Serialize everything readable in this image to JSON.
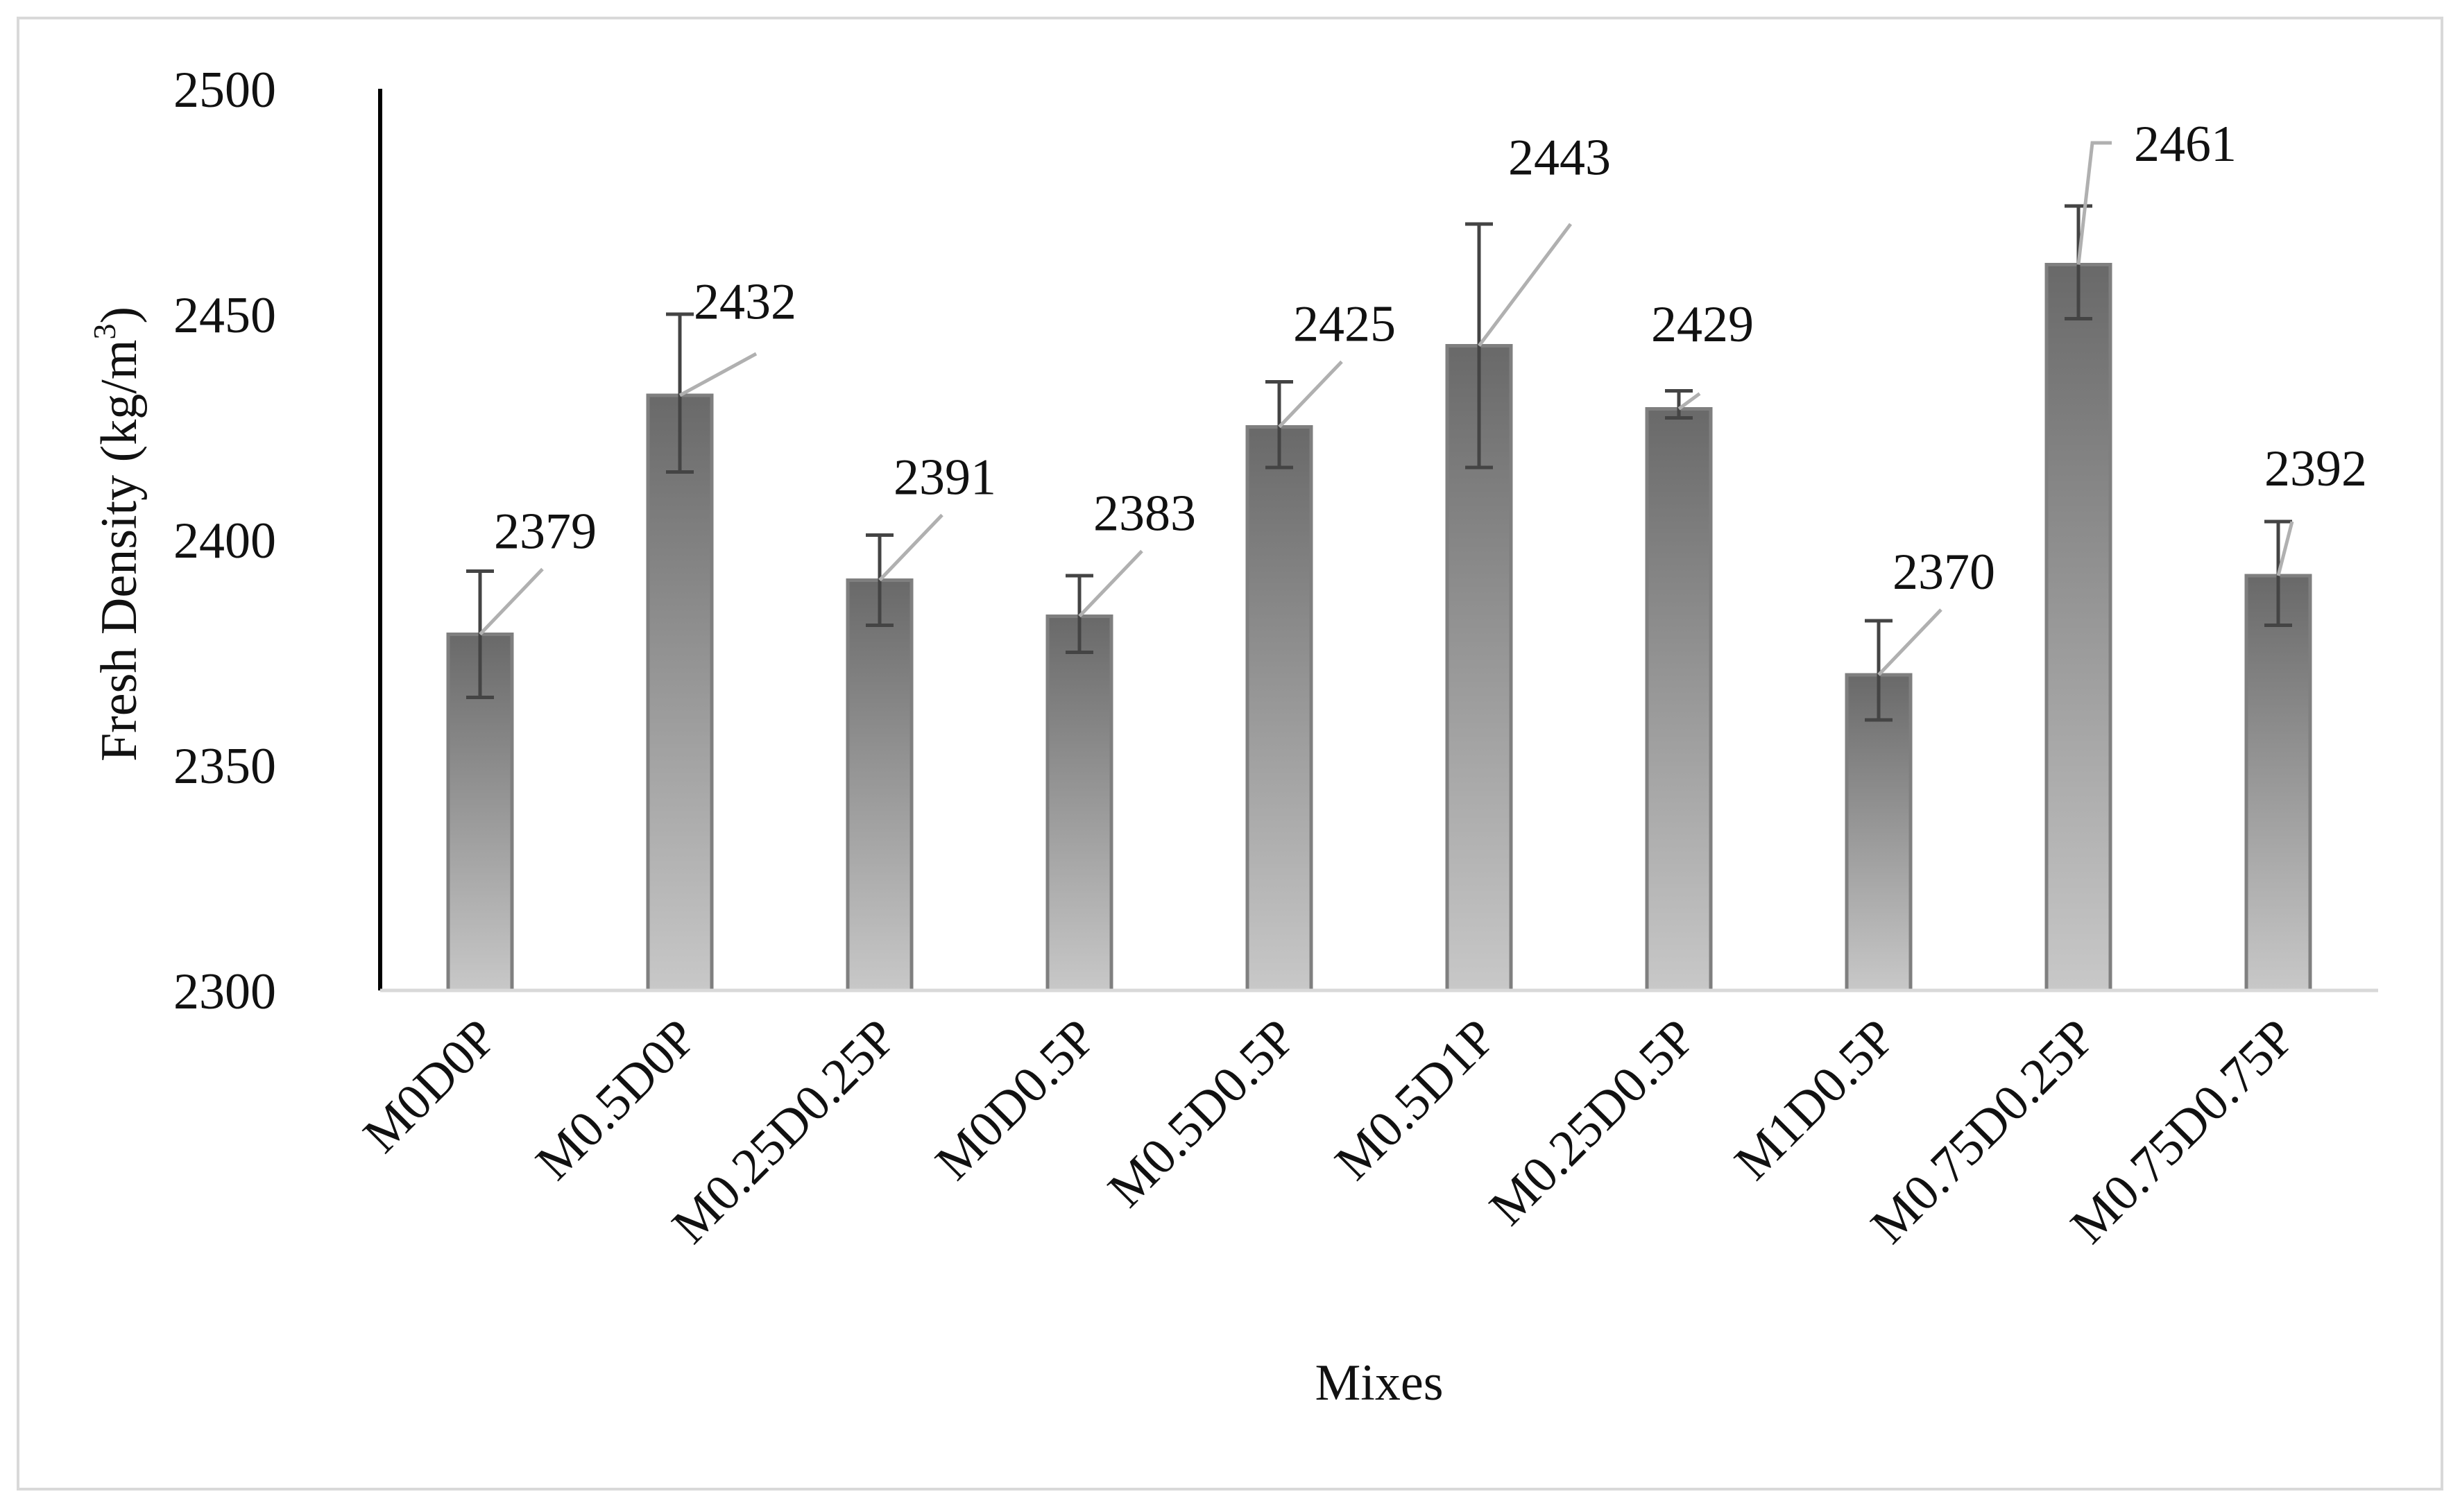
{
  "chart_data": {
    "type": "bar",
    "title": "",
    "xlabel": "Mixes",
    "ylabel": "Fresh Density (kg/m",
    "ylabel_sup": "3",
    "ylabel_close": ")",
    "ylim": [
      2300,
      2500
    ],
    "yticks": [
      2300,
      2350,
      2400,
      2450,
      2500
    ],
    "categories": [
      "M0D0P",
      "M0.5D0P",
      "M0.25D0.25P",
      "M0D0.5P",
      "M0.5D0.5P",
      "M0.5D1P",
      "M0.25D0.5P",
      "M1D0.5P",
      "M0.75D0.25P",
      "M0.75D0.75P"
    ],
    "values": [
      2379,
      2432,
      2391,
      2383,
      2425,
      2443,
      2429,
      2370,
      2461,
      2392
    ],
    "data_labels": [
      "2379",
      "2432",
      "2391",
      "2383",
      "2425",
      "2443",
      "2429",
      "2370",
      "2461",
      "2392"
    ],
    "error_low": [
      2365,
      2415,
      2381,
      2375,
      2416,
      2416,
      2427,
      2360,
      2449,
      2381
    ],
    "error_high": [
      2393,
      2450,
      2401,
      2392,
      2435,
      2470,
      2433,
      2382,
      2474,
      2404
    ],
    "grid": false,
    "legend": "none",
    "colors": {
      "bar_top": "#696969",
      "bar_bottom": "#c8c8c8",
      "bar_edge": "#7f7f7f",
      "error_bar": "#444444",
      "leader_line": "#b0b0b0",
      "axis": "#000000",
      "baseline": "#d9d9d9",
      "frame": "#d9d9d9"
    }
  }
}
